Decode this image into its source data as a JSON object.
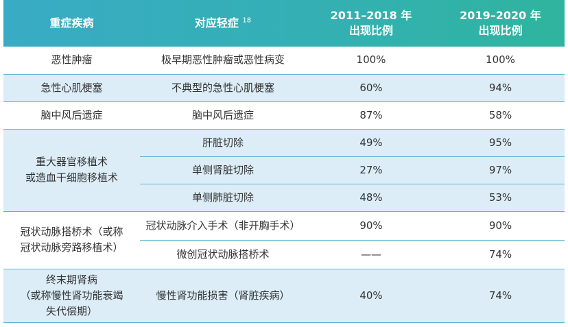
{
  "header": {
    "col1": "重症疾病",
    "col2": "对应轻症",
    "col2_sup": "18",
    "col3_line1": "2011–2018 年",
    "col3_line2": "出现比例",
    "col4_line1": "2019–2020 年",
    "col4_line2": "出现比例"
  },
  "colors": {
    "header_start": "#39abc4",
    "header_end": "#2fb49e",
    "row_blue": "#dcedf7",
    "row_white": "#ffffff",
    "divider": "#5bb7d0"
  },
  "rows": [
    {
      "disease": "恶性肿瘤",
      "mild": "极早期恶性肿瘤或恶性病变",
      "p1": "100%",
      "p2": "100%"
    },
    {
      "disease": "急性心肌梗塞",
      "mild": "不典型的急性心肌梗塞",
      "p1": "60%",
      "p2": "94%"
    },
    {
      "disease": "脑中风后遗症",
      "mild": "脑中风后遗症",
      "p1": "87%",
      "p2": "58%"
    },
    {
      "disease_line1": "重大器官移植术",
      "disease_line2": "或造血干细胞移植术",
      "sub": [
        {
          "mild": "肝脏切除",
          "p1": "49%",
          "p2": "95%"
        },
        {
          "mild": "单侧肾脏切除",
          "p1": "27%",
          "p2": "97%"
        },
        {
          "mild": "单侧肺脏切除",
          "p1": "48%",
          "p2": "53%"
        }
      ]
    },
    {
      "disease_line1": "冠状动脉搭桥术（或称",
      "disease_line2": "冠状动脉旁路移植术）",
      "sub": [
        {
          "mild": "冠状动脉介入手术（非开胸手术）",
          "p1": "90%",
          "p2": "90%"
        },
        {
          "mild": "微创冠状动脉搭桥术",
          "p1": "——",
          "p2": "74%"
        }
      ]
    },
    {
      "disease_line1": "终末期肾病",
      "disease_line2": "（或称慢性肾功能衰竭",
      "disease_line3": "失代偿期）",
      "mild": "慢性肾功能损害（肾脏疾病）",
      "p1": "40%",
      "p2": "74%"
    }
  ]
}
